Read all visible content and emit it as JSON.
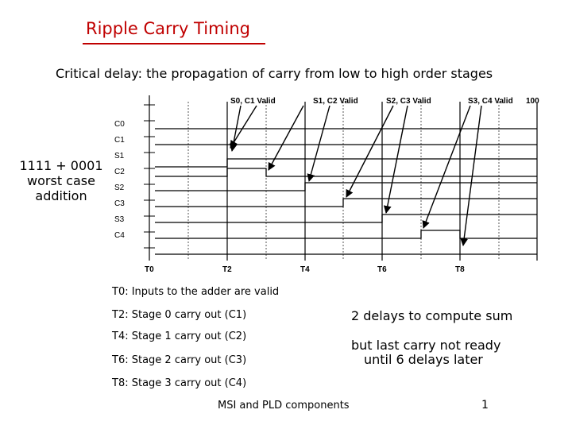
{
  "title": "Ripple Carry Timing",
  "subtitle": "Critical delay: the propagation of carry from low to high order stages",
  "side_note": [
    "1111 + 0001",
    "worst case",
    "addition"
  ],
  "diagram": {
    "signals": [
      "C0",
      "C1",
      "S1",
      "C2",
      "S2",
      "C3",
      "S3",
      "C4"
    ],
    "top_labels": [
      "S0, C1 Valid",
      "S1, C2 Valid",
      "S2, C3 Valid",
      "S3, C4 Valid",
      "100"
    ],
    "time_labels": [
      "T0",
      "T2",
      "T4",
      "T6",
      "T8"
    ]
  },
  "notes": [
    "T0: Inputs to the adder are valid",
    "T2: Stage 0 carry out (C1)",
    "T4: Stage 1 carry out (C2)",
    "T6: Stage 2 carry out (C3)",
    "T8: Stage 3 carry out (C4)"
  ],
  "right_notes": [
    "2 delays to compute sum",
    "but last carry not ready",
    "until 6 delays later"
  ],
  "footer": "MSI and PLD components",
  "page_number": "1"
}
